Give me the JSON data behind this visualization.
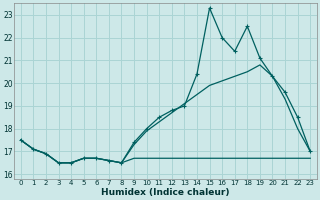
{
  "xlabel": "Humidex (Indice chaleur)",
  "x": [
    0,
    1,
    2,
    3,
    4,
    5,
    6,
    7,
    8,
    9,
    10,
    11,
    12,
    13,
    14,
    15,
    16,
    17,
    18,
    19,
    20,
    21,
    22,
    23
  ],
  "line1": [
    17.5,
    17.1,
    16.9,
    16.5,
    16.5,
    16.7,
    16.7,
    16.6,
    16.5,
    16.7,
    16.7,
    16.7,
    16.7,
    16.7,
    16.7,
    16.7,
    16.7,
    16.7,
    16.7,
    16.7,
    16.7,
    16.7,
    16.7,
    16.7
  ],
  "line2": [
    17.5,
    17.1,
    16.9,
    16.5,
    16.5,
    16.7,
    16.7,
    16.6,
    16.5,
    17.4,
    18.0,
    18.5,
    18.8,
    19.0,
    20.4,
    23.3,
    22.0,
    21.4,
    22.5,
    21.1,
    20.3,
    19.6,
    18.5,
    17.0
  ],
  "line3": [
    17.5,
    17.1,
    16.9,
    16.5,
    16.5,
    16.7,
    16.7,
    16.6,
    16.5,
    17.3,
    17.9,
    18.3,
    18.7,
    19.1,
    19.5,
    19.9,
    20.1,
    20.3,
    20.5,
    20.8,
    20.3,
    19.3,
    18.0,
    17.0
  ],
  "bg_color": "#cde8e8",
  "grid_color": "#aad4d4",
  "line_color": "#006060",
  "ylim": [
    15.8,
    23.5
  ],
  "yticks": [
    16,
    17,
    18,
    19,
    20,
    21,
    22,
    23
  ],
  "xlim": [
    -0.5,
    23.5
  ]
}
